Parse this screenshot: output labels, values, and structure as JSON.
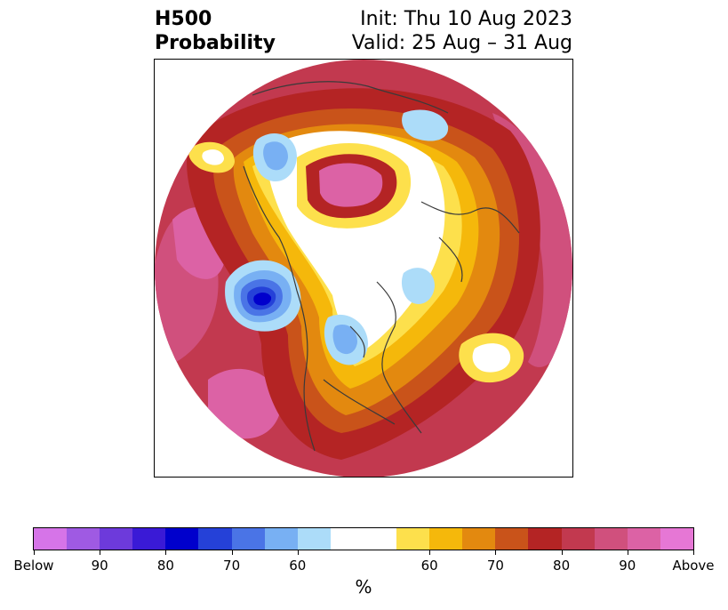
{
  "title": {
    "line1_left": "H500",
    "line2_left": "Probability",
    "line1_right": "Init: Thu 10 Aug 2023",
    "line2_right": "Valid: 25 Aug – 31 Aug"
  },
  "colorbar": {
    "unit": "%",
    "colors": [
      "#d674e8",
      "#9f5ae3",
      "#6d3adb",
      "#3a1ad6",
      "#0000cc",
      "#2541d8",
      "#4a74e6",
      "#78b0f3",
      "#acdcf9",
      "#ffffff",
      "#ffffff",
      "#fde04c",
      "#f5b80b",
      "#e3890f",
      "#c9531a",
      "#b42424",
      "#c2394f",
      "#d0507d",
      "#dc62a5",
      "#e677d5"
    ],
    "tick_labels": [
      "Below",
      "90",
      "80",
      "70",
      "60",
      "60",
      "70",
      "80",
      "90",
      "Above"
    ]
  },
  "map": {
    "projection": "north-polar-stereographic",
    "below_colors": {
      "b60": "#acdcf9",
      "b70": "#78b0f3",
      "b80": "#4a74e6",
      "b90": "#2541d8",
      "b95": "#0000cc"
    },
    "above_colors": {
      "a55": "#fde04c",
      "a60": "#f5b80b",
      "a65": "#e3890f",
      "a70": "#c9531a",
      "a75": "#b42424",
      "a80": "#c2394f",
      "a85": "#d0507d",
      "a90": "#dc62a5"
    }
  }
}
